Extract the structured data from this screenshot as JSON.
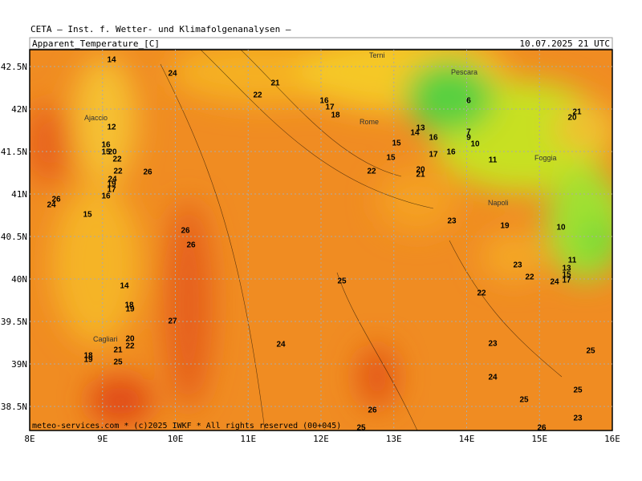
{
  "header": {
    "source": "CETA — Inst. f. Wetter- und Klimafolgenanalysen —",
    "title": "Apparent_Temperature_[C]",
    "time": "10.07.2025 21 UTC"
  },
  "x_ticks": [
    "8E",
    "9E",
    "10E",
    "11E",
    "12E",
    "13E",
    "14E",
    "15E",
    "16E"
  ],
  "y_ticks": [
    "42.5N",
    "42N",
    "41.5N",
    "41N",
    "40.5N",
    "40N",
    "39.5N",
    "39N",
    "38.5N"
  ],
  "cities": [
    "Terni",
    "Pescara",
    "Ajaccio",
    "Rome",
    "Foggia",
    "Napoli",
    "Cagliari"
  ],
  "contour_labels": [
    "14",
    "24",
    "21",
    "22",
    "16",
    "17",
    "18",
    "6",
    "21",
    "20",
    "12",
    "16",
    "15",
    "20",
    "22",
    "22",
    "26",
    "24",
    "19",
    "17",
    "16",
    "26",
    "24",
    "15",
    "26",
    "26",
    "14",
    "18",
    "19",
    "27",
    "20",
    "22",
    "21",
    "18",
    "19",
    "25",
    "24",
    "25",
    "22",
    "15",
    "15",
    "14",
    "13",
    "20",
    "21",
    "17",
    "16",
    "16",
    "7",
    "9",
    "10",
    "11",
    "19",
    "23",
    "23",
    "22",
    "22",
    "23",
    "24",
    "25",
    "10",
    "11",
    "13",
    "15",
    "17",
    "24",
    "25",
    "25",
    "23",
    "26",
    "25",
    "26"
  ],
  "footer": "meteo-services.com * (c)2025 IWKF * All rights reserved (00+045)"
}
